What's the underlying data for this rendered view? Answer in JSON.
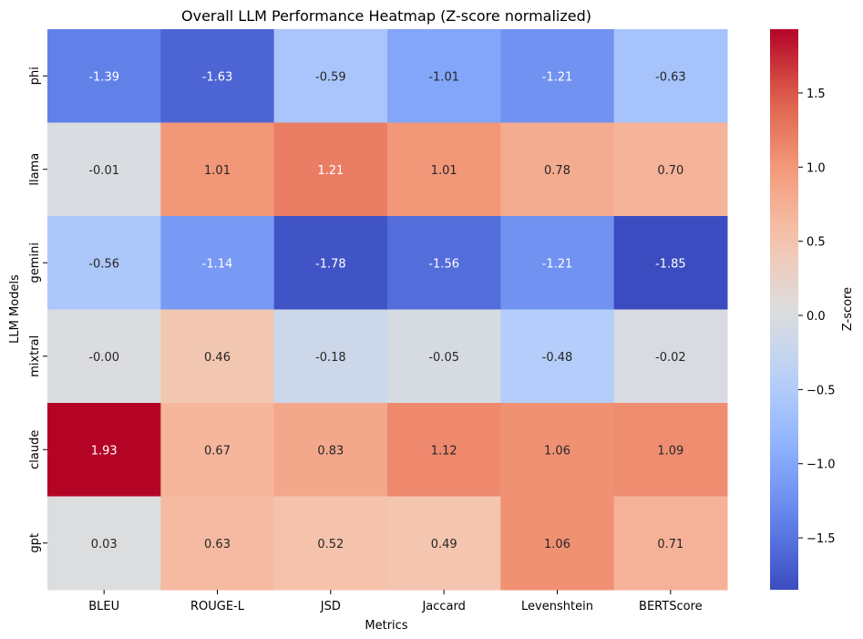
{
  "chart_data": {
    "type": "heatmap",
    "title": "Overall LLM Performance Heatmap (Z-score normalized)",
    "xlabel": "Metrics",
    "ylabel": "LLM Models",
    "x_categories": [
      "BLEU",
      "ROUGE-L",
      "JSD",
      "Jaccard",
      "Levenshtein",
      "BERTScore"
    ],
    "y_categories": [
      "phi",
      "llama",
      "gemini",
      "mixtral",
      "claude",
      "gpt"
    ],
    "values": [
      [
        -1.39,
        -1.63,
        -0.59,
        -1.01,
        -1.21,
        -0.63
      ],
      [
        -0.01,
        1.01,
        1.21,
        1.01,
        0.78,
        0.7
      ],
      [
        -0.56,
        -1.14,
        -1.78,
        -1.56,
        -1.21,
        -1.85
      ],
      [
        -0.0,
        0.46,
        -0.18,
        -0.05,
        -0.48,
        -0.02
      ],
      [
        1.93,
        0.67,
        0.83,
        1.12,
        1.06,
        1.09
      ],
      [
        0.03,
        0.63,
        0.52,
        0.49,
        1.06,
        0.71
      ]
    ],
    "labels": [
      [
        "-1.39",
        "-1.63",
        "-0.59",
        "-1.01",
        "-1.21",
        "-0.63"
      ],
      [
        "-0.01",
        "1.01",
        "1.21",
        "1.01",
        "0.78",
        "0.70"
      ],
      [
        "-0.56",
        "-1.14",
        "-1.78",
        "-1.56",
        "-1.21",
        "-1.85"
      ],
      [
        "-0.00",
        "0.46",
        "-0.18",
        "-0.05",
        "-0.48",
        "-0.02"
      ],
      [
        "1.93",
        "0.67",
        "0.83",
        "1.12",
        "1.06",
        "1.09"
      ],
      [
        "0.03",
        "0.63",
        "0.52",
        "0.49",
        "1.06",
        "0.71"
      ]
    ],
    "colormap": "coolwarm",
    "vmin": -1.85,
    "vmax": 1.93,
    "colorbar": {
      "label": "Z-score",
      "ticks": [
        1.5,
        1.0,
        0.5,
        0.0,
        -0.5,
        -1.0,
        -1.5
      ],
      "tick_labels": [
        "1.5",
        "1.0",
        "0.5",
        "0.0",
        "−0.5",
        "−1.0",
        "−1.5"
      ]
    },
    "grid": false
  }
}
